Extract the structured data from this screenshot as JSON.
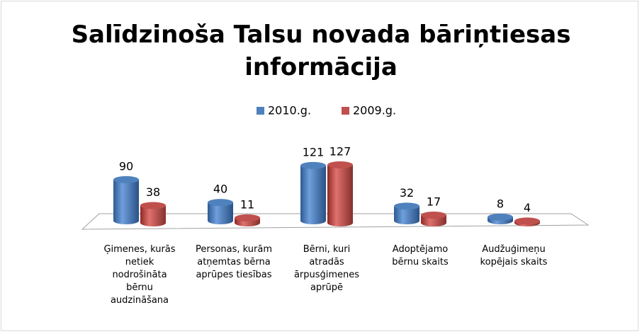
{
  "chart_data": {
    "type": "bar3d",
    "title": "Salīdzinoša Talsu novada bāriņtiesas informācija",
    "categories": [
      "Ģimenes, kurās netiek nodrošināta bērnu audzināšana",
      "Personas, kurām atņemtas bērna aprūpes tiesības",
      "Bērni, kuri atradās ārpusģimenes aprūpē",
      "Adoptējamo bērnu skaits",
      "Audžuģimeņu kopējais skaits"
    ],
    "series": [
      {
        "name": "2010.g.",
        "color": "#4f81bd",
        "values": [
          90,
          40,
          121,
          32,
          8
        ]
      },
      {
        "name": "2009.g.",
        "color": "#c0504d",
        "values": [
          38,
          11,
          127,
          17,
          4
        ]
      }
    ],
    "legend": "top"
  }
}
